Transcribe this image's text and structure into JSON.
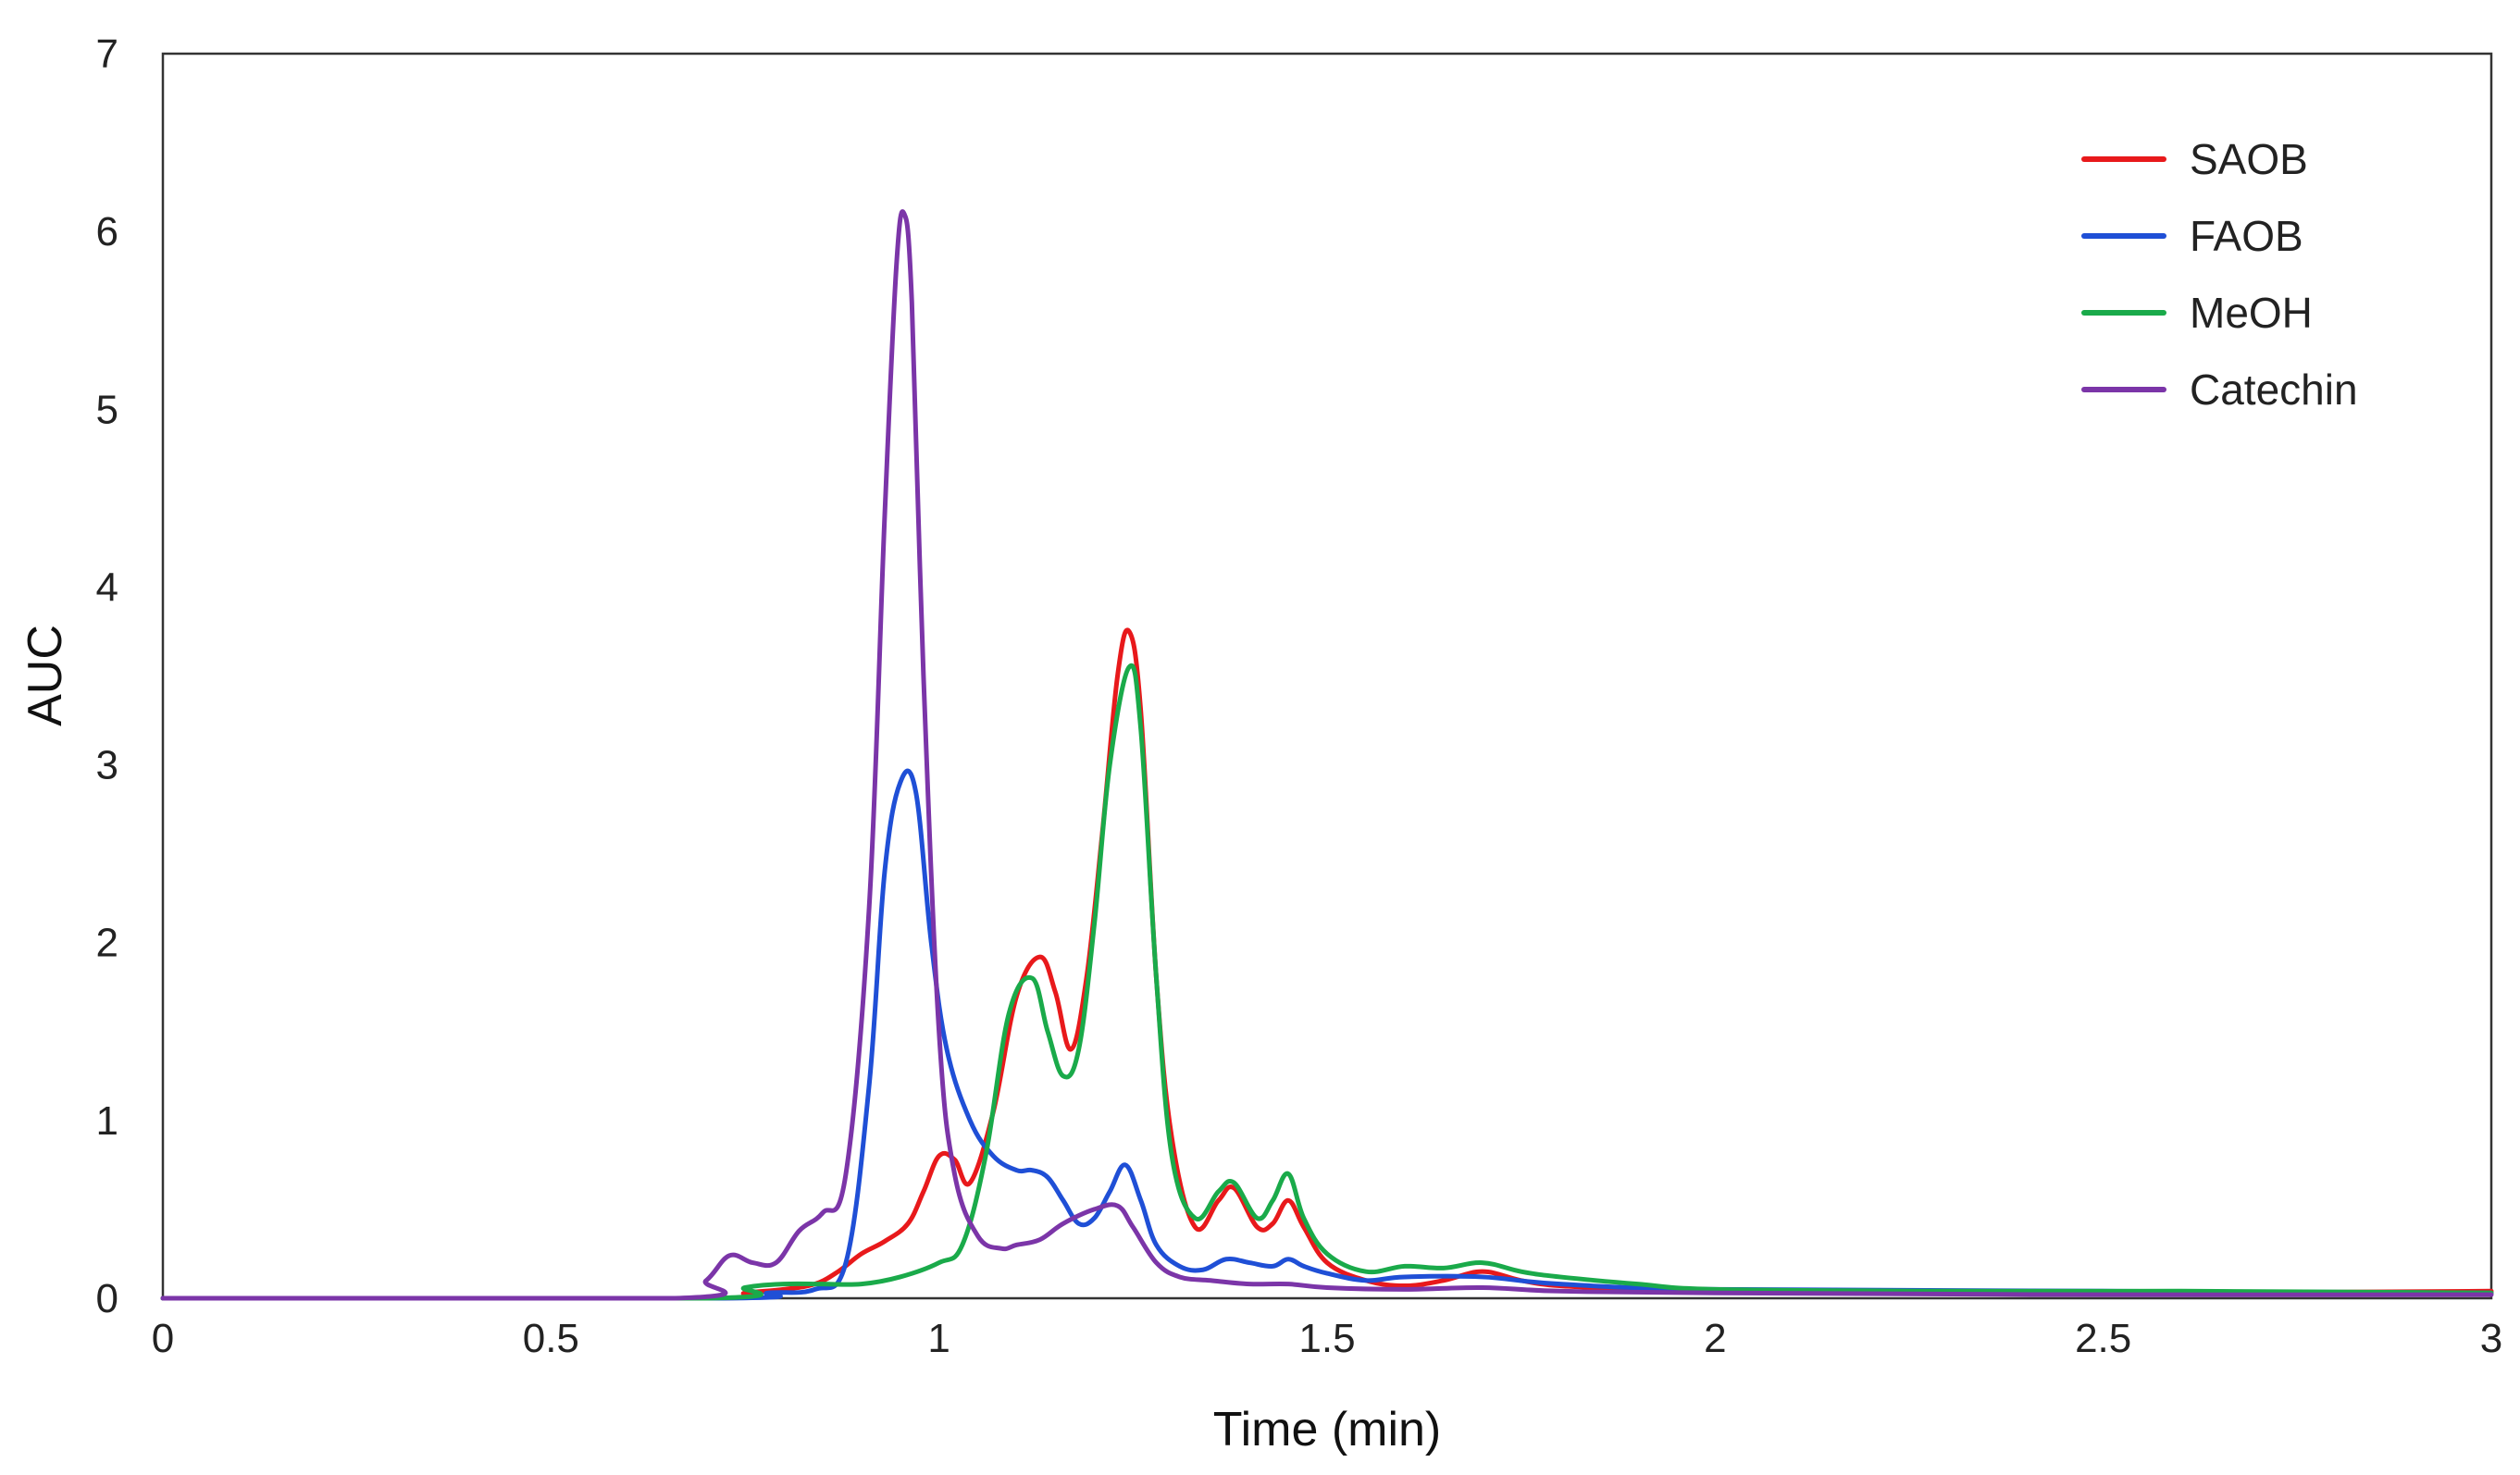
{
  "chart_data": {
    "type": "line",
    "title": "",
    "xlabel": "Time (min)",
    "ylabel": "AUC",
    "xlim": [
      0,
      3
    ],
    "ylim": [
      0,
      7
    ],
    "xticks": [
      {
        "value": 0,
        "label": "0"
      },
      {
        "value": 0.5,
        "label": "0.5"
      },
      {
        "value": 1,
        "label": "1"
      },
      {
        "value": 1.5,
        "label": "1.5"
      },
      {
        "value": 2,
        "label": "2"
      },
      {
        "value": 2.5,
        "label": "2.5"
      },
      {
        "value": 3,
        "label": "3"
      }
    ],
    "yticks": [
      {
        "value": 0,
        "label": "0"
      },
      {
        "value": 1,
        "label": "1"
      },
      {
        "value": 2,
        "label": "2"
      },
      {
        "value": 3,
        "label": "3"
      },
      {
        "value": 4,
        "label": "4"
      },
      {
        "value": 5,
        "label": "5"
      },
      {
        "value": 6,
        "label": "6"
      },
      {
        "value": 7,
        "label": "7"
      }
    ],
    "grid": false,
    "legend_position": "top-right",
    "series": [
      {
        "name": "SAOB",
        "color": "#e8191b",
        "x": [
          0,
          0.7,
          0.75,
          0.8,
          0.84,
          0.87,
          0.9,
          0.93,
          0.96,
          0.98,
          1.0,
          1.02,
          1.04,
          1.07,
          1.1,
          1.13,
          1.15,
          1.17,
          1.19,
          1.21,
          1.23,
          1.245,
          1.26,
          1.28,
          1.3,
          1.33,
          1.36,
          1.38,
          1.41,
          1.43,
          1.45,
          1.47,
          1.5,
          1.55,
          1.6,
          1.65,
          1.7,
          1.75,
          1.8,
          1.9,
          2.0,
          2.3,
          2.6,
          3.0
        ],
        "y": [
          0,
          0,
          0.03,
          0.05,
          0.08,
          0.15,
          0.25,
          0.32,
          0.42,
          0.6,
          0.8,
          0.78,
          0.65,
          1.05,
          1.7,
          1.92,
          1.72,
          1.4,
          1.8,
          2.6,
          3.5,
          3.75,
          3.3,
          1.8,
          0.9,
          0.4,
          0.55,
          0.62,
          0.4,
          0.42,
          0.55,
          0.4,
          0.2,
          0.1,
          0.07,
          0.1,
          0.15,
          0.1,
          0.07,
          0.05,
          0.04,
          0.03,
          0.03,
          0.04
        ]
      },
      {
        "name": "FAOB",
        "color": "#1f4fd6",
        "x": [
          0,
          0.72,
          0.78,
          0.84,
          0.88,
          0.91,
          0.93,
          0.95,
          0.97,
          0.99,
          1.01,
          1.04,
          1.07,
          1.1,
          1.12,
          1.14,
          1.16,
          1.18,
          1.2,
          1.22,
          1.24,
          1.26,
          1.28,
          1.31,
          1.34,
          1.37,
          1.4,
          1.43,
          1.45,
          1.47,
          1.5,
          1.55,
          1.6,
          1.7,
          1.8,
          2.0,
          2.5,
          3.0
        ],
        "y": [
          0,
          0,
          0.03,
          0.05,
          0.2,
          1.2,
          2.4,
          2.9,
          2.85,
          2.0,
          1.4,
          1.0,
          0.8,
          0.72,
          0.72,
          0.68,
          0.55,
          0.42,
          0.45,
          0.6,
          0.75,
          0.55,
          0.3,
          0.18,
          0.16,
          0.22,
          0.2,
          0.18,
          0.22,
          0.18,
          0.14,
          0.1,
          0.12,
          0.12,
          0.08,
          0.05,
          0.04,
          0.03
        ]
      },
      {
        "name": "MeOH",
        "color": "#1aaa4a",
        "x": [
          0,
          0.7,
          0.75,
          0.8,
          0.85,
          0.9,
          0.95,
          1.0,
          1.03,
          1.06,
          1.09,
          1.12,
          1.14,
          1.16,
          1.18,
          1.2,
          1.22,
          1.245,
          1.26,
          1.28,
          1.3,
          1.33,
          1.36,
          1.38,
          1.41,
          1.43,
          1.45,
          1.47,
          1.5,
          1.55,
          1.6,
          1.65,
          1.7,
          1.75,
          1.8,
          1.9,
          2.0,
          2.3,
          2.6,
          3.0
        ],
        "y": [
          0,
          0,
          0.06,
          0.08,
          0.08,
          0.08,
          0.12,
          0.2,
          0.3,
          0.8,
          1.6,
          1.8,
          1.5,
          1.25,
          1.4,
          2.1,
          3.0,
          3.55,
          3.2,
          1.8,
          0.8,
          0.45,
          0.6,
          0.65,
          0.45,
          0.55,
          0.7,
          0.45,
          0.25,
          0.15,
          0.18,
          0.17,
          0.2,
          0.15,
          0.12,
          0.08,
          0.05,
          0.04,
          0.04,
          0.03
        ]
      },
      {
        "name": "Catechin",
        "color": "#7b35a8",
        "x": [
          0,
          0.66,
          0.7,
          0.73,
          0.76,
          0.79,
          0.82,
          0.85,
          0.88,
          0.91,
          0.93,
          0.945,
          0.955,
          0.965,
          0.98,
          1.0,
          1.02,
          1.05,
          1.08,
          1.1,
          1.13,
          1.16,
          1.2,
          1.23,
          1.25,
          1.28,
          1.31,
          1.35,
          1.4,
          1.45,
          1.5,
          1.6,
          1.7,
          1.8,
          2.0,
          2.5,
          3.0
        ],
        "y": [
          0,
          0,
          0.1,
          0.24,
          0.2,
          0.2,
          0.38,
          0.48,
          0.7,
          2.2,
          4.4,
          5.8,
          6.1,
          5.6,
          3.5,
          1.5,
          0.7,
          0.35,
          0.28,
          0.3,
          0.33,
          0.42,
          0.5,
          0.52,
          0.4,
          0.2,
          0.12,
          0.1,
          0.08,
          0.08,
          0.06,
          0.05,
          0.06,
          0.04,
          0.03,
          0.02,
          0.02
        ]
      }
    ]
  }
}
